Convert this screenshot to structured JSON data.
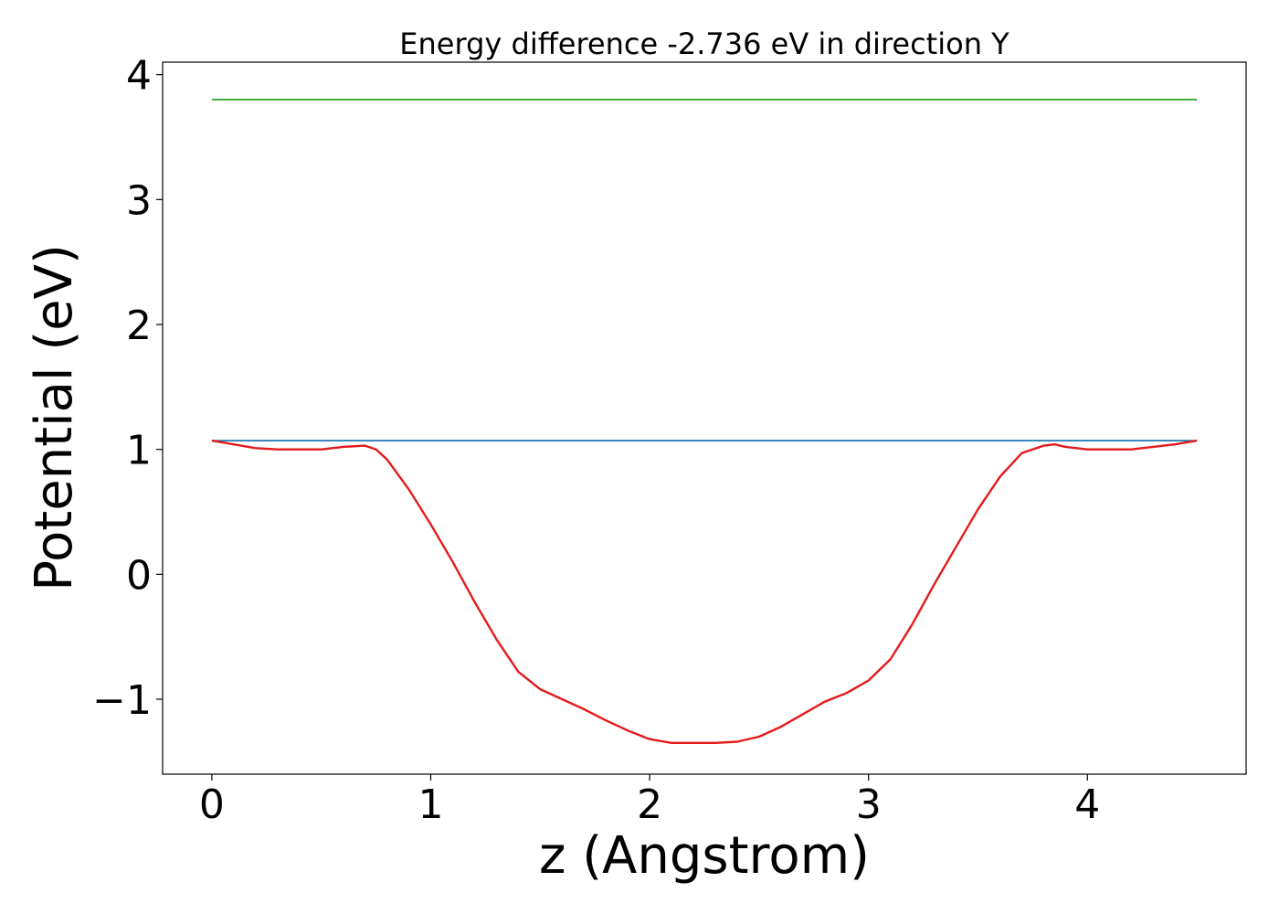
{
  "chart_data": {
    "type": "line",
    "title": "Energy difference -2.736 eV in direction Y",
    "xlabel": "z (Angstrom)",
    "ylabel": "Potential (eV)",
    "xlim": [
      -0.225,
      4.725
    ],
    "ylim": [
      -1.6,
      4.1
    ],
    "xticks": [
      0,
      1,
      2,
      3,
      4
    ],
    "yticks": [
      -1,
      0,
      1,
      2,
      3,
      4
    ],
    "xtick_labels": [
      "0",
      "1",
      "2",
      "3",
      "4"
    ],
    "ytick_labels": [
      "−1",
      "0",
      "1",
      "2",
      "3",
      "4"
    ],
    "grid": false,
    "series": [
      {
        "color": "#2ca02c",
        "x": [
          0,
          4.5
        ],
        "y": [
          3.8,
          3.8
        ]
      },
      {
        "color": "#1f77b4",
        "x": [
          0,
          4.5
        ],
        "y": [
          1.07,
          1.07
        ]
      },
      {
        "color": "#e41a1c",
        "x": [
          0,
          0.1,
          0.2,
          0.3,
          0.4,
          0.5,
          0.6,
          0.7,
          0.75,
          0.8,
          0.9,
          1.0,
          1.1,
          1.2,
          1.3,
          1.4,
          1.5,
          1.6,
          1.7,
          1.8,
          1.9,
          2.0,
          2.1,
          2.2,
          2.3,
          2.4,
          2.5,
          2.6,
          2.7,
          2.8,
          2.9,
          3.0,
          3.1,
          3.2,
          3.3,
          3.4,
          3.5,
          3.6,
          3.7,
          3.8,
          3.85,
          3.9,
          4.0,
          4.1,
          4.2,
          4.3,
          4.4,
          4.5
        ],
        "y": [
          1.07,
          1.04,
          1.01,
          1.0,
          1.0,
          1.0,
          1.02,
          1.03,
          1.0,
          0.92,
          0.68,
          0.4,
          0.1,
          -0.22,
          -0.52,
          -0.78,
          -0.92,
          -1.0,
          -1.08,
          -1.17,
          -1.25,
          -1.32,
          -1.35,
          -1.35,
          -1.35,
          -1.34,
          -1.3,
          -1.22,
          -1.12,
          -1.02,
          -0.95,
          -0.85,
          -0.68,
          -0.4,
          -0.08,
          0.22,
          0.52,
          0.78,
          0.97,
          1.03,
          1.04,
          1.02,
          1.0,
          1.0,
          1.0,
          1.02,
          1.04,
          1.07
        ]
      }
    ]
  }
}
